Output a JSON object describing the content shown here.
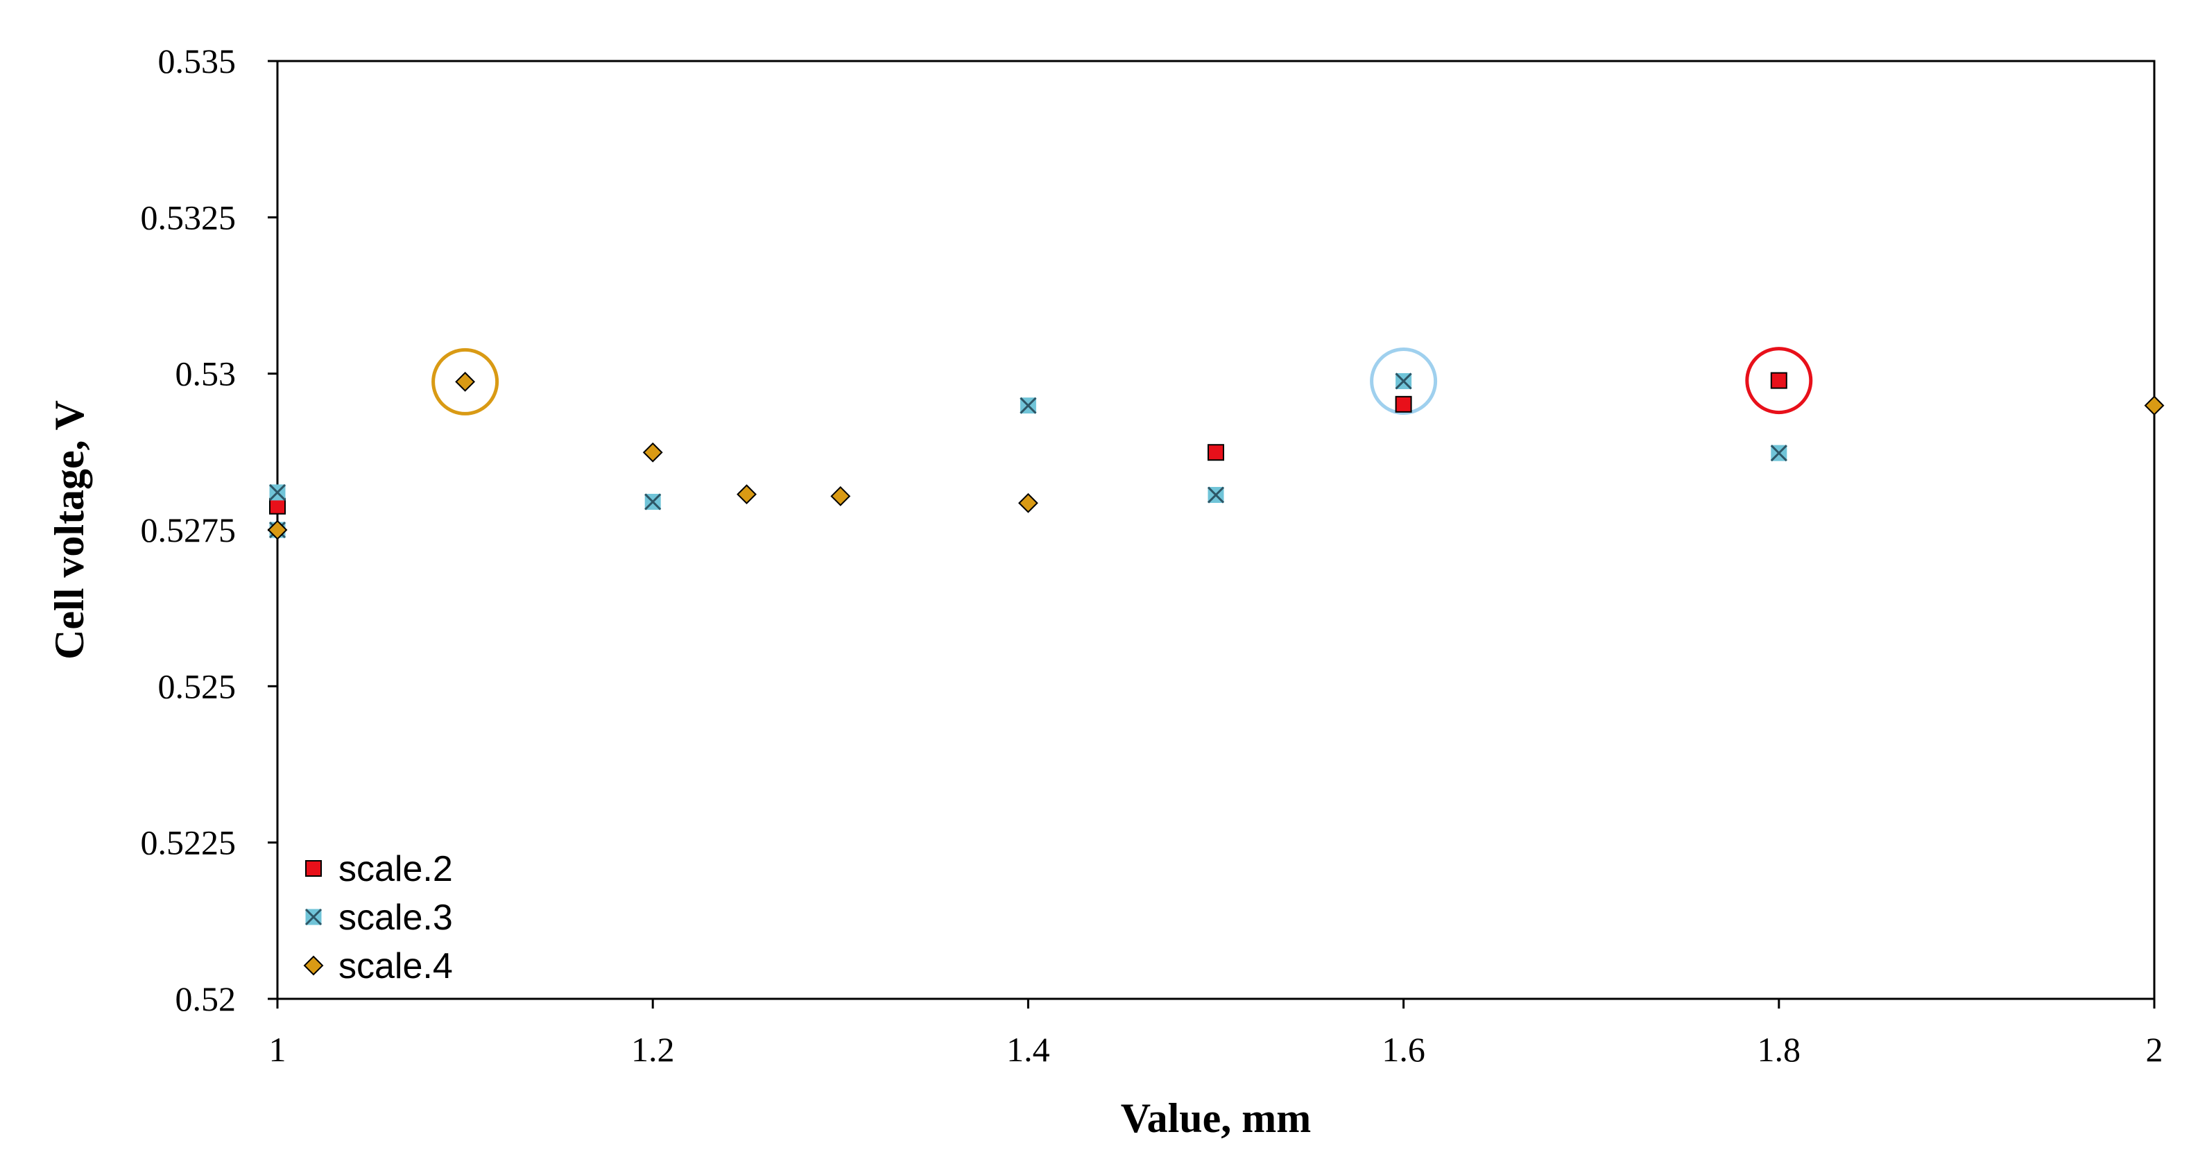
{
  "chart_data": {
    "type": "scatter",
    "title": "",
    "xlabel": "Value, mm",
    "ylabel": "Cell voltage, V",
    "xlim": [
      1,
      2
    ],
    "ylim": [
      0.52,
      0.535
    ],
    "x_ticks": [
      "1",
      "1.2",
      "1.4",
      "1.6",
      "1.8",
      "2"
    ],
    "y_ticks": [
      "0.535",
      "0.5325",
      "0.53",
      "0.5275",
      "0.525",
      "0.5225",
      "0.52"
    ],
    "grid": false,
    "legend_position": "bottom-left",
    "series": [
      {
        "name": "scale.2",
        "marker": "square",
        "color": "#e8101a",
        "points": [
          {
            "x": 1.0,
            "y": 0.52788
          },
          {
            "x": 1.5,
            "y": 0.52874
          },
          {
            "x": 1.6,
            "y": 0.52951
          },
          {
            "x": 1.8,
            "y": 0.52989
          }
        ]
      },
      {
        "name": "scale.3",
        "marker": "x-square",
        "color": "#70c4d8",
        "points": [
          {
            "x": 1.0,
            "y": 0.5281
          },
          {
            "x": 1.0,
            "y": 0.5275
          },
          {
            "x": 1.2,
            "y": 0.52795
          },
          {
            "x": 1.4,
            "y": 0.52949
          },
          {
            "x": 1.5,
            "y": 0.52806
          },
          {
            "x": 1.6,
            "y": 0.52988
          },
          {
            "x": 1.8,
            "y": 0.52873
          }
        ]
      },
      {
        "name": "scale.4",
        "marker": "diamond",
        "color": "#d99a14",
        "points": [
          {
            "x": 1.0,
            "y": 0.5275
          },
          {
            "x": 1.1,
            "y": 0.52987
          },
          {
            "x": 1.2,
            "y": 0.52874
          },
          {
            "x": 1.25,
            "y": 0.52807
          },
          {
            "x": 1.3,
            "y": 0.52804
          },
          {
            "x": 1.4,
            "y": 0.52793
          },
          {
            "x": 2.0,
            "y": 0.52949
          }
        ]
      }
    ],
    "highlight_circles": [
      {
        "x": 1.1,
        "y": 0.52987,
        "color": "#d99a14"
      },
      {
        "x": 1.6,
        "y": 0.52988,
        "color": "#9fd0ee"
      },
      {
        "x": 1.8,
        "y": 0.52989,
        "color": "#e8101a"
      }
    ]
  }
}
